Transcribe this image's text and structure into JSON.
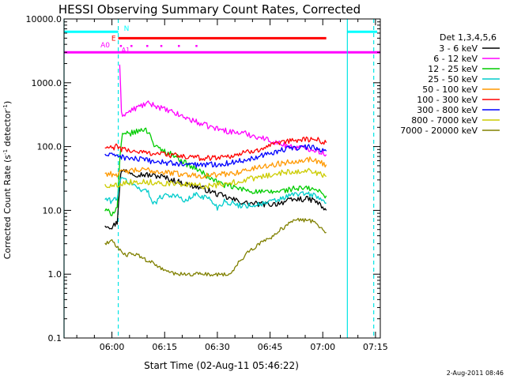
{
  "chart_data": {
    "type": "line",
    "title": "HESSI Observing Summary Count Rates, Corrected",
    "xlabel": "Start Time (02-Aug-11 05:46:22)",
    "ylabel_main": "Corrected Count Rate (s",
    "ylabel_sup1": "-1",
    "ylabel_mid": " detector",
    "ylabel_sup2": "-1",
    "ylabel_end": ")",
    "y_scale": "log",
    "ylim": [
      0.1,
      10000
    ],
    "xlim_minutes": [
      46.37,
      136.37
    ],
    "x_ticks": [
      {
        "m": 60,
        "label": "06:00"
      },
      {
        "m": 75,
        "label": "06:15"
      },
      {
        "m": 90,
        "label": "06:30"
      },
      {
        "m": 105,
        "label": "06:45"
      },
      {
        "m": 120,
        "label": "07:00"
      },
      {
        "m": 135,
        "label": "07:15"
      }
    ],
    "y_ticks": [
      {
        "v": 0.1,
        "label": "0.1"
      },
      {
        "v": 1,
        "label": "1.0"
      },
      {
        "v": 10,
        "label": "10.0"
      },
      {
        "v": 100,
        "label": "100.0"
      },
      {
        "v": 1000,
        "label": "1000.0"
      },
      {
        "v": 10000,
        "label": "10000.0"
      }
    ],
    "legend_title": "Det 1,3,4,5,6",
    "legend_placement": "right",
    "footer_date": "2-Aug-2011 08:46",
    "series": [
      {
        "name": "3 - 6 keV",
        "color": "#000000",
        "points": [
          [
            58,
            6
          ],
          [
            60,
            5.5
          ],
          [
            61.5,
            6.5
          ],
          [
            62.5,
            40
          ],
          [
            64,
            42
          ],
          [
            67,
            37
          ],
          [
            70,
            36
          ],
          [
            74,
            34
          ],
          [
            78,
            29
          ],
          [
            82,
            25
          ],
          [
            86,
            22
          ],
          [
            90,
            18
          ],
          [
            94,
            15
          ],
          [
            98,
            13
          ],
          [
            102,
            12.5
          ],
          [
            106,
            12.5
          ],
          [
            110,
            14
          ],
          [
            113,
            15
          ],
          [
            116,
            15
          ],
          [
            118,
            14
          ],
          [
            120,
            11
          ],
          [
            121,
            10
          ]
        ]
      },
      {
        "name": "6 - 12 keV",
        "color": "#ff00ff",
        "points": [
          [
            62.2,
            2000
          ],
          [
            62.7,
            320
          ],
          [
            64,
            330
          ],
          [
            66,
            380
          ],
          [
            68,
            430
          ],
          [
            70,
            470
          ],
          [
            72,
            450
          ],
          [
            75,
            380
          ],
          [
            78,
            330
          ],
          [
            82,
            270
          ],
          [
            86,
            220
          ],
          [
            90,
            190
          ],
          [
            94,
            170
          ],
          [
            98,
            160
          ],
          [
            102,
            140
          ],
          [
            105,
            125
          ],
          [
            108,
            110
          ],
          [
            111,
            100
          ],
          [
            114,
            95
          ],
          [
            117,
            92
          ],
          [
            120,
            80
          ],
          [
            121,
            75
          ]
        ]
      },
      {
        "name": "12 - 25 keV",
        "color": "#00cc00",
        "points": [
          [
            58,
            10
          ],
          [
            60,
            9
          ],
          [
            61.5,
            11
          ],
          [
            62.3,
            70
          ],
          [
            63,
            150
          ],
          [
            65,
            160
          ],
          [
            67,
            170
          ],
          [
            69,
            190
          ],
          [
            71,
            160
          ],
          [
            72,
            100
          ],
          [
            74,
            90
          ],
          [
            76,
            80
          ],
          [
            78,
            72
          ],
          [
            80,
            60
          ],
          [
            82,
            50
          ],
          [
            84,
            45
          ],
          [
            86,
            38
          ],
          [
            88,
            32
          ],
          [
            90,
            28
          ],
          [
            92,
            25
          ],
          [
            96,
            22
          ],
          [
            100,
            20
          ],
          [
            104,
            19
          ],
          [
            108,
            20
          ],
          [
            112,
            22
          ],
          [
            116,
            22
          ],
          [
            118,
            21
          ],
          [
            120,
            18
          ],
          [
            121,
            17
          ]
        ]
      },
      {
        "name": "25 - 50 keV",
        "color": "#00cccc",
        "points": [
          [
            58,
            15
          ],
          [
            60,
            14
          ],
          [
            61.5,
            16
          ],
          [
            62.3,
            30
          ],
          [
            64,
            30
          ],
          [
            66,
            25
          ],
          [
            68,
            22
          ],
          [
            70,
            20
          ],
          [
            72,
            13
          ],
          [
            75,
            18
          ],
          [
            78,
            17
          ],
          [
            81,
            14
          ],
          [
            84,
            18
          ],
          [
            88,
            15
          ],
          [
            90,
            11
          ],
          [
            92,
            14
          ],
          [
            96,
            12
          ],
          [
            100,
            12
          ],
          [
            104,
            13
          ],
          [
            108,
            15
          ],
          [
            112,
            18
          ],
          [
            116,
            18
          ],
          [
            118,
            17
          ],
          [
            120,
            14
          ],
          [
            121,
            13
          ]
        ]
      },
      {
        "name": "50 - 100 keV",
        "color": "#ff9900",
        "points": [
          [
            58,
            38
          ],
          [
            60,
            37
          ],
          [
            61.5,
            37
          ],
          [
            63,
            40
          ],
          [
            66,
            42
          ],
          [
            70,
            43
          ],
          [
            74,
            40
          ],
          [
            78,
            38
          ],
          [
            82,
            36
          ],
          [
            86,
            35
          ],
          [
            90,
            36
          ],
          [
            94,
            38
          ],
          [
            98,
            42
          ],
          [
            102,
            48
          ],
          [
            106,
            52
          ],
          [
            110,
            57
          ],
          [
            114,
            62
          ],
          [
            117,
            63
          ],
          [
            119,
            58
          ],
          [
            121,
            52
          ]
        ]
      },
      {
        "name": "100 - 300 keV",
        "color": "#ff0000",
        "points": [
          [
            58,
            95
          ],
          [
            60,
            95
          ],
          [
            61.5,
            100
          ],
          [
            63,
            90
          ],
          [
            66,
            85
          ],
          [
            70,
            80
          ],
          [
            74,
            78
          ],
          [
            78,
            72
          ],
          [
            82,
            68
          ],
          [
            86,
            66
          ],
          [
            90,
            68
          ],
          [
            94,
            72
          ],
          [
            98,
            80
          ],
          [
            102,
            92
          ],
          [
            106,
            105
          ],
          [
            110,
            120
          ],
          [
            114,
            130
          ],
          [
            117,
            130
          ],
          [
            119,
            125
          ],
          [
            121,
            115
          ]
        ]
      },
      {
        "name": "300 - 800 keV",
        "color": "#0000ff",
        "points": [
          [
            58,
            75
          ],
          [
            60,
            72
          ],
          [
            61.5,
            75
          ],
          [
            63,
            68
          ],
          [
            66,
            65
          ],
          [
            70,
            60
          ],
          [
            74,
            57
          ],
          [
            78,
            54
          ],
          [
            82,
            52
          ],
          [
            86,
            52
          ],
          [
            90,
            53
          ],
          [
            94,
            56
          ],
          [
            98,
            62
          ],
          [
            102,
            72
          ],
          [
            106,
            82
          ],
          [
            110,
            92
          ],
          [
            114,
            98
          ],
          [
            117,
            97
          ],
          [
            119,
            92
          ],
          [
            121,
            85
          ]
        ]
      },
      {
        "name": "800 - 7000 keV",
        "color": "#cccc00",
        "points": [
          [
            58,
            25
          ],
          [
            60,
            24
          ],
          [
            61.5,
            25
          ],
          [
            63,
            27
          ],
          [
            66,
            28
          ],
          [
            70,
            28
          ],
          [
            74,
            27
          ],
          [
            78,
            26
          ],
          [
            82,
            25
          ],
          [
            86,
            24
          ],
          [
            90,
            25
          ],
          [
            94,
            27
          ],
          [
            98,
            30
          ],
          [
            102,
            33
          ],
          [
            106,
            37
          ],
          [
            110,
            40
          ],
          [
            114,
            42
          ],
          [
            117,
            41
          ],
          [
            119,
            38
          ],
          [
            121,
            34
          ]
        ]
      },
      {
        "name": "7000 - 20000 keV",
        "color": "#808000",
        "points": [
          [
            58,
            3
          ],
          [
            59,
            3.2
          ],
          [
            60,
            3.3
          ],
          [
            61,
            2.8
          ],
          [
            62,
            2.5
          ],
          [
            64,
            2
          ],
          [
            66,
            2.1
          ],
          [
            68,
            1.9
          ],
          [
            70,
            1.6
          ],
          [
            72,
            1.5
          ],
          [
            74,
            1.2
          ],
          [
            76,
            1.1
          ],
          [
            78,
            1
          ],
          [
            82,
            1
          ],
          [
            86,
            1
          ],
          [
            90,
            1
          ],
          [
            94,
            1
          ],
          [
            96,
            1.5
          ],
          [
            98,
            2
          ],
          [
            100,
            2.5
          ],
          [
            102,
            3
          ],
          [
            104,
            3.5
          ],
          [
            106,
            4
          ],
          [
            108,
            5
          ],
          [
            110,
            6
          ],
          [
            112,
            7
          ],
          [
            114,
            7
          ],
          [
            116,
            7
          ],
          [
            118,
            6.5
          ],
          [
            120,
            5
          ],
          [
            121,
            4.5
          ]
        ]
      }
    ],
    "vertical_lines": [
      {
        "m": 46.37,
        "style": "solid"
      },
      {
        "m": 61.8,
        "style": "dashed"
      },
      {
        "m": 127.0,
        "style": "solid"
      },
      {
        "m": 134.5,
        "style": "dashed"
      }
    ],
    "flag_bars": [
      {
        "label": "N",
        "color": "#00ffff",
        "segments": [
          [
            46.37,
            61.8
          ],
          [
            127.0,
            135.5
          ]
        ],
        "value": 6300
      },
      {
        "label": "E",
        "color": "#ff0000",
        "segments": [
          [
            61.8,
            121
          ]
        ],
        "value": 5000
      },
      {
        "label": "A0",
        "color": "#ff00ff",
        "segments": [
          [
            46.37,
            136.37
          ]
        ],
        "value": 3000
      }
    ],
    "flag_markers": [
      {
        "label": "A1",
        "color": "#ff00ff",
        "x": [
          62.5,
          65.5,
          70,
          74,
          79,
          84
        ],
        "value": 3800
      }
    ]
  }
}
